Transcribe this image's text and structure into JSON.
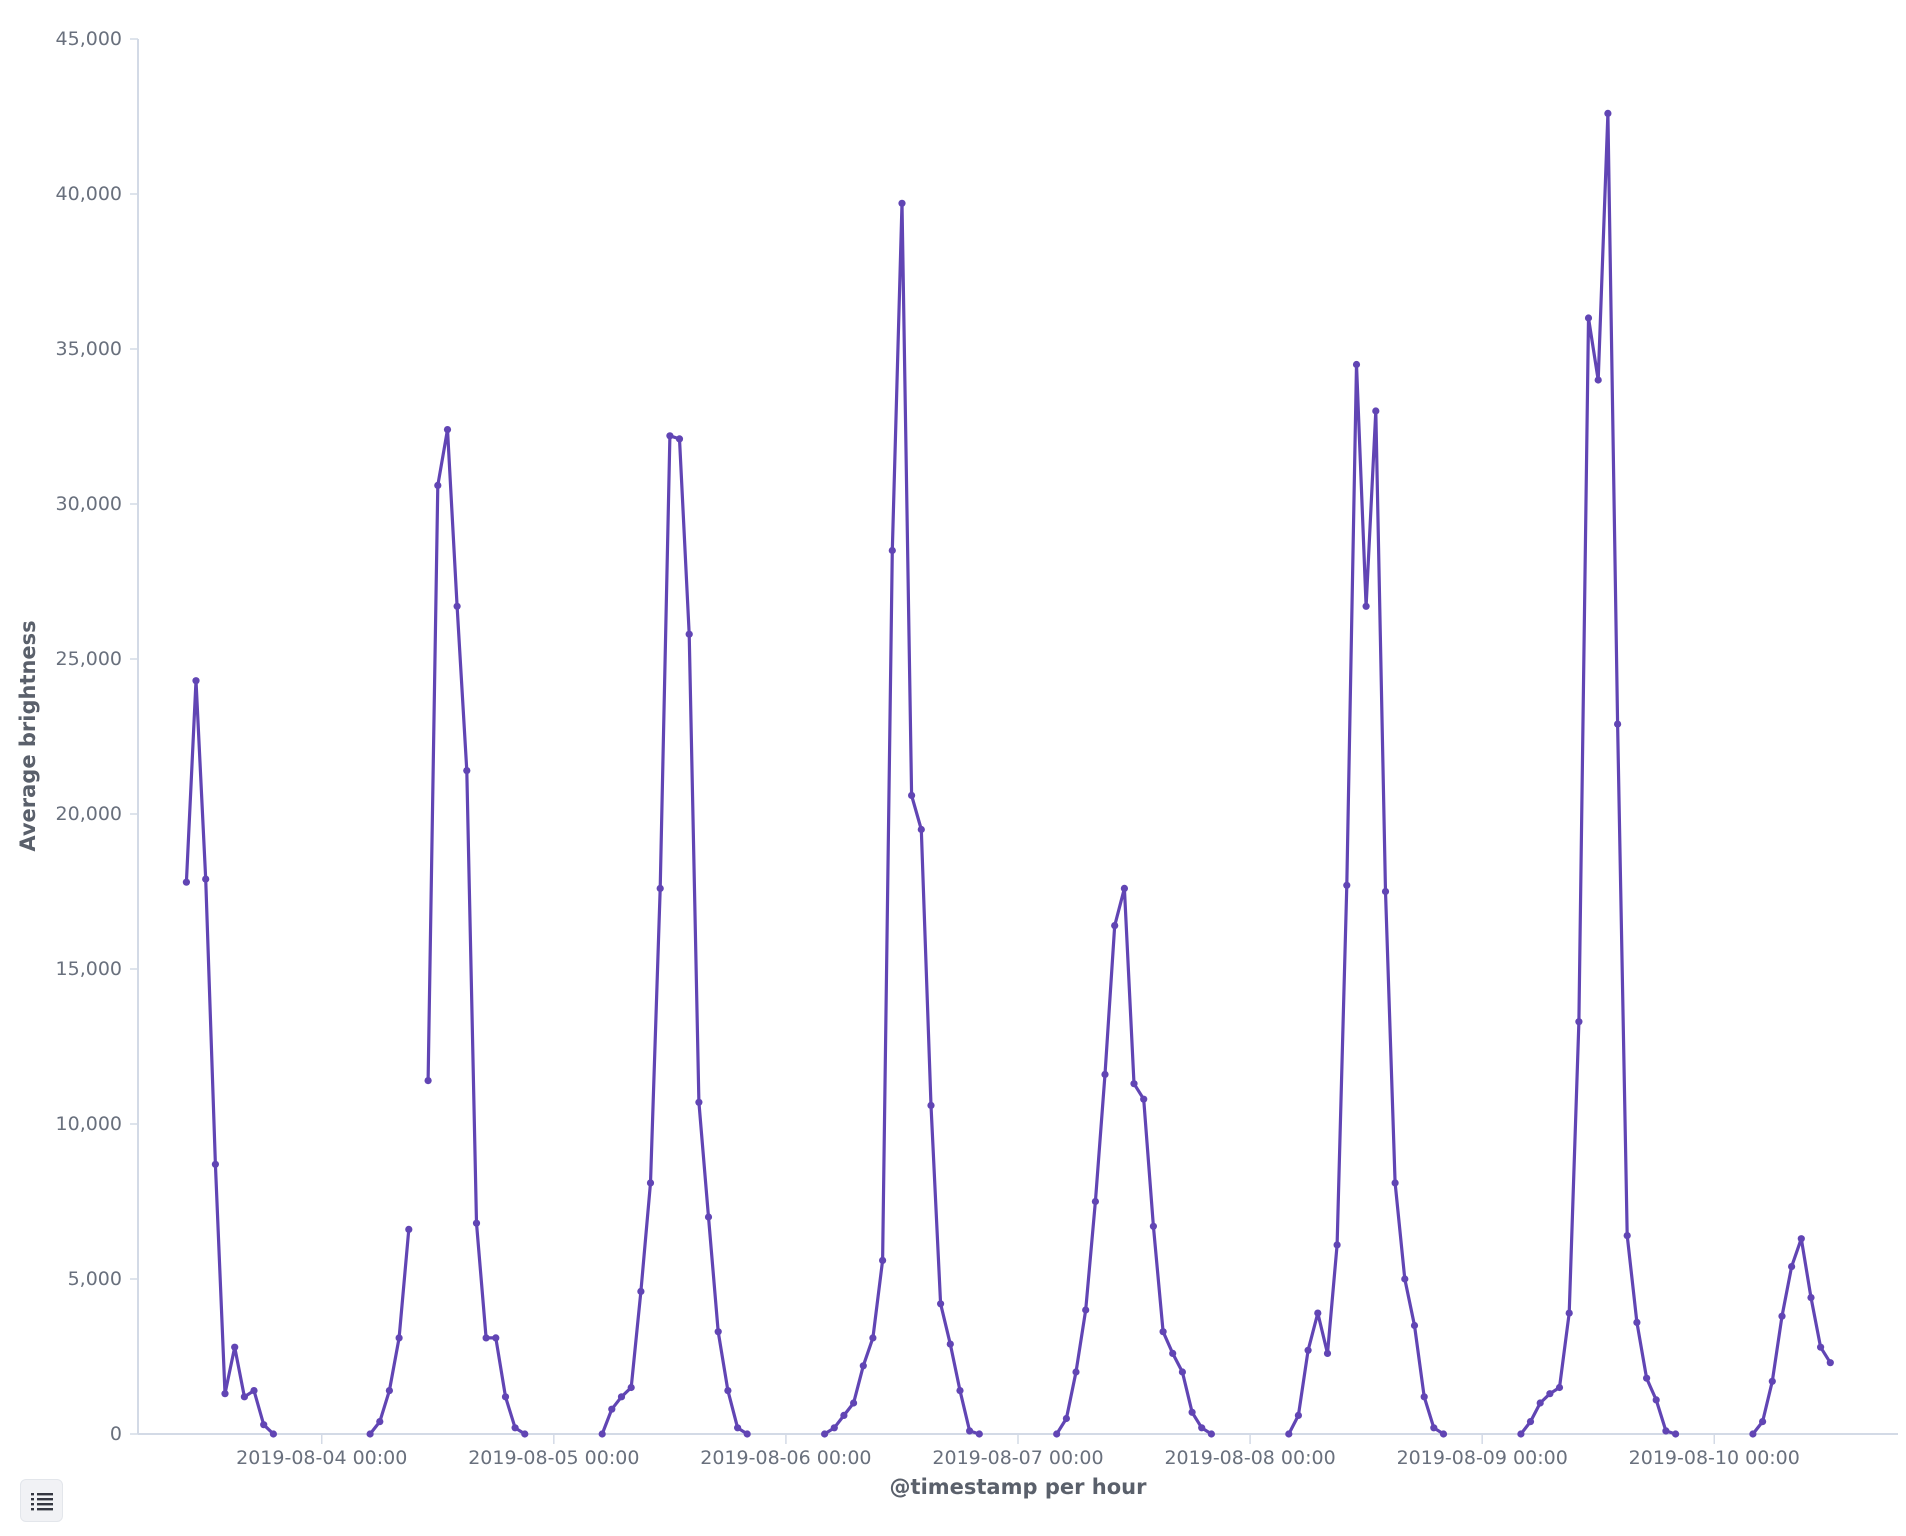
{
  "chart_data": {
    "type": "line",
    "xlabel": "@timestamp per hour",
    "ylabel": "Average brightness",
    "ylim": [
      0,
      45000
    ],
    "yticks": [
      0,
      5000,
      10000,
      15000,
      20000,
      25000,
      30000,
      35000,
      40000,
      45000
    ],
    "ytick_labels": [
      "0",
      "5,000",
      "10,000",
      "15,000",
      "20,000",
      "25,000",
      "30,000",
      "35,000",
      "40,000",
      "45,000"
    ],
    "xlim": [
      "2019-08-03 05:00",
      "2019-08-10 19:00"
    ],
    "xticks": [
      "2019-08-04 00:00",
      "2019-08-05 00:00",
      "2019-08-06 00:00",
      "2019-08-07 00:00",
      "2019-08-08 00:00",
      "2019-08-09 00:00",
      "2019-08-10 00:00"
    ],
    "xtick_labels": [
      "2019-08-04 00:00",
      "2019-08-05 00:00",
      "2019-08-06 00:00",
      "2019-08-07 00:00",
      "2019-08-08 00:00",
      "2019-08-09 00:00",
      "2019-08-10 00:00"
    ],
    "color": "#6145b4",
    "grid": false,
    "series": [
      {
        "segments": [
          [
            [
              "2019-08-03 10:00",
              17800
            ],
            [
              "2019-08-03 11:00",
              24300
            ],
            [
              "2019-08-03 12:00",
              17900
            ],
            [
              "2019-08-03 13:00",
              8700
            ],
            [
              "2019-08-03 14:00",
              1300
            ],
            [
              "2019-08-03 15:00",
              2800
            ],
            [
              "2019-08-03 16:00",
              1200
            ],
            [
              "2019-08-03 17:00",
              1400
            ],
            [
              "2019-08-03 18:00",
              300
            ],
            [
              "2019-08-03 19:00",
              0
            ]
          ],
          [
            [
              "2019-08-04 05:00",
              0
            ],
            [
              "2019-08-04 06:00",
              400
            ],
            [
              "2019-08-04 07:00",
              1400
            ],
            [
              "2019-08-04 08:00",
              3100
            ],
            [
              "2019-08-04 09:00",
              6600
            ]
          ],
          [
            [
              "2019-08-04 11:00",
              11400
            ],
            [
              "2019-08-04 12:00",
              30600
            ],
            [
              "2019-08-04 13:00",
              32400
            ],
            [
              "2019-08-04 14:00",
              26700
            ],
            [
              "2019-08-04 15:00",
              21400
            ],
            [
              "2019-08-04 16:00",
              6800
            ],
            [
              "2019-08-04 17:00",
              3100
            ],
            [
              "2019-08-04 18:00",
              3100
            ],
            [
              "2019-08-04 19:00",
              1200
            ],
            [
              "2019-08-04 20:00",
              200
            ],
            [
              "2019-08-04 21:00",
              0
            ]
          ],
          [
            [
              "2019-08-05 05:00",
              0
            ],
            [
              "2019-08-05 06:00",
              800
            ],
            [
              "2019-08-05 07:00",
              1200
            ],
            [
              "2019-08-05 08:00",
              1500
            ],
            [
              "2019-08-05 09:00",
              4600
            ],
            [
              "2019-08-05 10:00",
              8100
            ],
            [
              "2019-08-05 11:00",
              17600
            ],
            [
              "2019-08-05 12:00",
              32200
            ],
            [
              "2019-08-05 13:00",
              32100
            ],
            [
              "2019-08-05 14:00",
              25800
            ],
            [
              "2019-08-05 15:00",
              10700
            ],
            [
              "2019-08-05 16:00",
              7000
            ],
            [
              "2019-08-05 17:00",
              3300
            ],
            [
              "2019-08-05 18:00",
              1400
            ],
            [
              "2019-08-05 19:00",
              200
            ],
            [
              "2019-08-05 20:00",
              0
            ]
          ],
          [
            [
              "2019-08-06 04:00",
              0
            ],
            [
              "2019-08-06 05:00",
              200
            ],
            [
              "2019-08-06 06:00",
              600
            ],
            [
              "2019-08-06 07:00",
              1000
            ],
            [
              "2019-08-06 08:00",
              2200
            ],
            [
              "2019-08-06 09:00",
              3100
            ],
            [
              "2019-08-06 10:00",
              5600
            ],
            [
              "2019-08-06 11:00",
              28500
            ],
            [
              "2019-08-06 12:00",
              39700
            ],
            [
              "2019-08-06 13:00",
              20600
            ],
            [
              "2019-08-06 14:00",
              19500
            ],
            [
              "2019-08-06 15:00",
              10600
            ],
            [
              "2019-08-06 16:00",
              4200
            ],
            [
              "2019-08-06 17:00",
              2900
            ],
            [
              "2019-08-06 18:00",
              1400
            ],
            [
              "2019-08-06 19:00",
              100
            ],
            [
              "2019-08-06 20:00",
              0
            ]
          ],
          [
            [
              "2019-08-07 04:00",
              0
            ],
            [
              "2019-08-07 05:00",
              500
            ],
            [
              "2019-08-07 06:00",
              2000
            ],
            [
              "2019-08-07 07:00",
              4000
            ],
            [
              "2019-08-07 08:00",
              7500
            ],
            [
              "2019-08-07 09:00",
              11600
            ],
            [
              "2019-08-07 10:00",
              16400
            ],
            [
              "2019-08-07 11:00",
              17600
            ],
            [
              "2019-08-07 12:00",
              11300
            ],
            [
              "2019-08-07 13:00",
              10800
            ],
            [
              "2019-08-07 14:00",
              6700
            ],
            [
              "2019-08-07 15:00",
              3300
            ],
            [
              "2019-08-07 16:00",
              2600
            ],
            [
              "2019-08-07 17:00",
              2000
            ],
            [
              "2019-08-07 18:00",
              700
            ],
            [
              "2019-08-07 19:00",
              200
            ],
            [
              "2019-08-07 20:00",
              0
            ]
          ],
          [
            [
              "2019-08-08 04:00",
              0
            ],
            [
              "2019-08-08 05:00",
              600
            ],
            [
              "2019-08-08 06:00",
              2700
            ],
            [
              "2019-08-08 07:00",
              3900
            ],
            [
              "2019-08-08 08:00",
              2600
            ],
            [
              "2019-08-08 09:00",
              6100
            ],
            [
              "2019-08-08 10:00",
              17700
            ],
            [
              "2019-08-08 11:00",
              34500
            ],
            [
              "2019-08-08 12:00",
              26700
            ],
            [
              "2019-08-08 13:00",
              33000
            ],
            [
              "2019-08-08 14:00",
              17500
            ],
            [
              "2019-08-08 15:00",
              8100
            ],
            [
              "2019-08-08 16:00",
              5000
            ],
            [
              "2019-08-08 17:00",
              3500
            ],
            [
              "2019-08-08 18:00",
              1200
            ],
            [
              "2019-08-08 19:00",
              200
            ],
            [
              "2019-08-08 20:00",
              0
            ]
          ],
          [
            [
              "2019-08-09 04:00",
              0
            ],
            [
              "2019-08-09 05:00",
              400
            ],
            [
              "2019-08-09 06:00",
              1000
            ],
            [
              "2019-08-09 07:00",
              1300
            ],
            [
              "2019-08-09 08:00",
              1500
            ],
            [
              "2019-08-09 09:00",
              3900
            ],
            [
              "2019-08-09 10:00",
              13300
            ],
            [
              "2019-08-09 11:00",
              36000
            ],
            [
              "2019-08-09 12:00",
              34000
            ],
            [
              "2019-08-09 13:00",
              42600
            ],
            [
              "2019-08-09 14:00",
              22900
            ],
            [
              "2019-08-09 15:00",
              6400
            ],
            [
              "2019-08-09 16:00",
              3600
            ],
            [
              "2019-08-09 17:00",
              1800
            ],
            [
              "2019-08-09 18:00",
              1100
            ],
            [
              "2019-08-09 19:00",
              100
            ],
            [
              "2019-08-09 20:00",
              0
            ]
          ],
          [
            [
              "2019-08-10 04:00",
              0
            ],
            [
              "2019-08-10 05:00",
              400
            ],
            [
              "2019-08-10 06:00",
              1700
            ],
            [
              "2019-08-10 07:00",
              3800
            ],
            [
              "2019-08-10 08:00",
              5400
            ],
            [
              "2019-08-10 09:00",
              6300
            ],
            [
              "2019-08-10 10:00",
              4400
            ],
            [
              "2019-08-10 11:00",
              2800
            ],
            [
              "2019-08-10 12:00",
              2300
            ]
          ]
        ]
      }
    ]
  },
  "legend_toggle": {
    "icon": "list-icon"
  }
}
